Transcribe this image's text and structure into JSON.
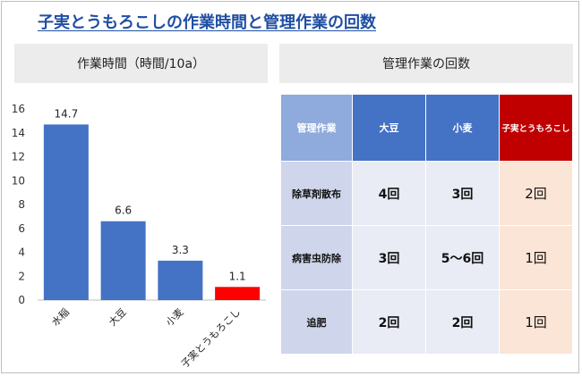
{
  "title": "子実とうもろこしの作業時間と管理作業の回数",
  "chart_header": "作業時間（時間/10a）",
  "table_header": "管理作業の回数",
  "colors": {
    "bar": "#4472c4",
    "highlight": "#ff0000",
    "table_header_blue": "#4472c4",
    "table_header_red": "#c00000"
  },
  "chart_data": {
    "type": "bar",
    "title": "作業時間（時間/10a）",
    "categories": [
      "水稲",
      "大豆",
      "小麦",
      "子実とうもろこし"
    ],
    "values": [
      14.7,
      6.6,
      3.3,
      1.1
    ],
    "value_labels": [
      "14.7",
      "6.6",
      "3.3",
      "1.1"
    ],
    "highlight_index": 3,
    "ylim": [
      0,
      16
    ],
    "yticks": [
      0,
      2,
      4,
      6,
      8,
      10,
      12,
      14,
      16
    ],
    "grid": false,
    "xlabel": "",
    "ylabel": ""
  },
  "table": {
    "columns": [
      "管理作業",
      "大豆",
      "小麦",
      "子実とうもろこし"
    ],
    "rows": [
      {
        "label": "除草剤散布",
        "values": [
          "4回",
          "3回",
          "2回"
        ]
      },
      {
        "label": "病害虫防除",
        "values": [
          "3回",
          "5～6回",
          "1回"
        ]
      },
      {
        "label": "追肥",
        "values": [
          "2回",
          "2回",
          "1回"
        ]
      }
    ]
  }
}
